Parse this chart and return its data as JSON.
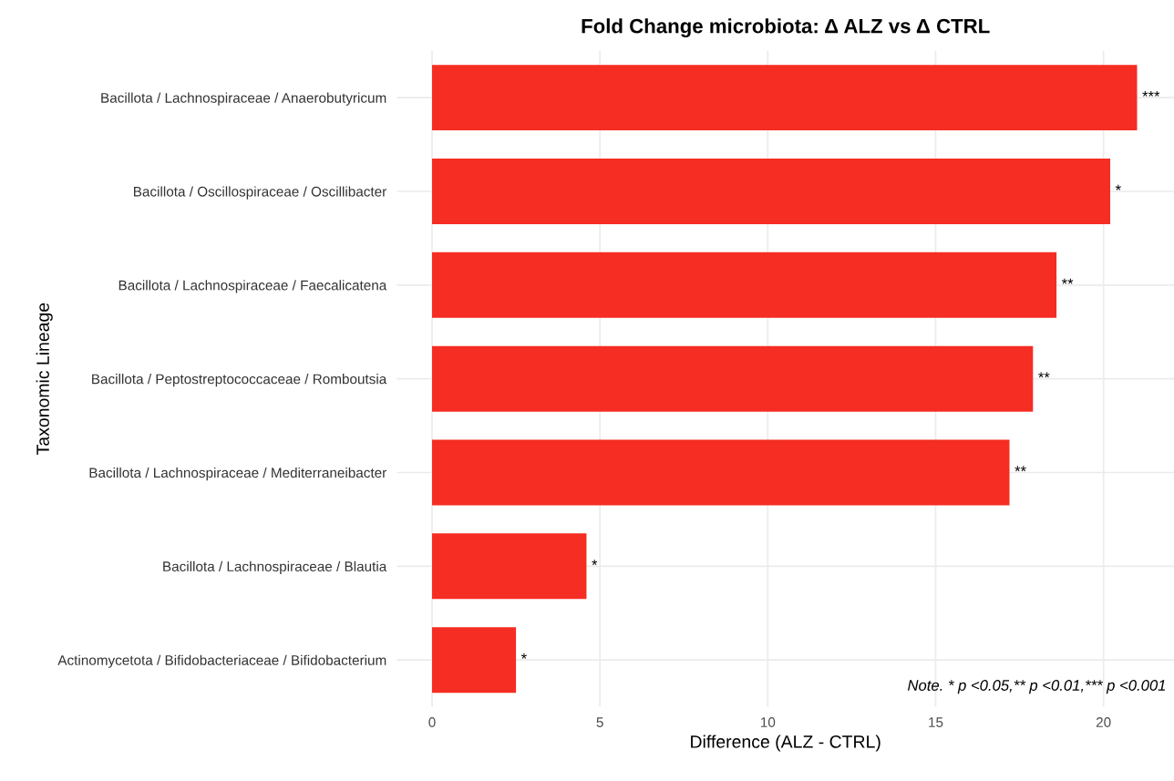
{
  "chart_data": {
    "type": "bar",
    "orientation": "horizontal",
    "title": "Fold Change microbiota: Δ ALZ vs Δ CTRL",
    "xlabel": "Difference (ALZ - CTRL)",
    "ylabel": "Taxonomic Lineage",
    "categories": [
      "Bacillota / Lachnospiraceae / Anaerobutyricum",
      "Bacillota / Oscillospiraceae / Oscillibacter",
      "Bacillota / Lachnospiraceae / Faecalicatena",
      "Bacillota / Peptostreptococcaceae / Romboutsia",
      "Bacillota / Lachnospiraceae / Mediterraneibacter",
      "Bacillota / Lachnospiraceae / Blautia",
      "Actinomycetota / Bifidobacteriaceae / Bifidobacterium"
    ],
    "values": [
      21.0,
      20.2,
      18.6,
      17.9,
      17.2,
      4.6,
      2.5
    ],
    "value_labels": [
      "***",
      "*",
      "**",
      "**",
      "**",
      "*",
      "*"
    ],
    "color": "#f52d22",
    "xlim": [
      -1.05,
      22.1
    ],
    "xticks": [
      0,
      5,
      10,
      15,
      20
    ],
    "grid": true,
    "annotations": [
      "Note. * p <0.05,** p <0.01,*** p <0.001"
    ]
  }
}
